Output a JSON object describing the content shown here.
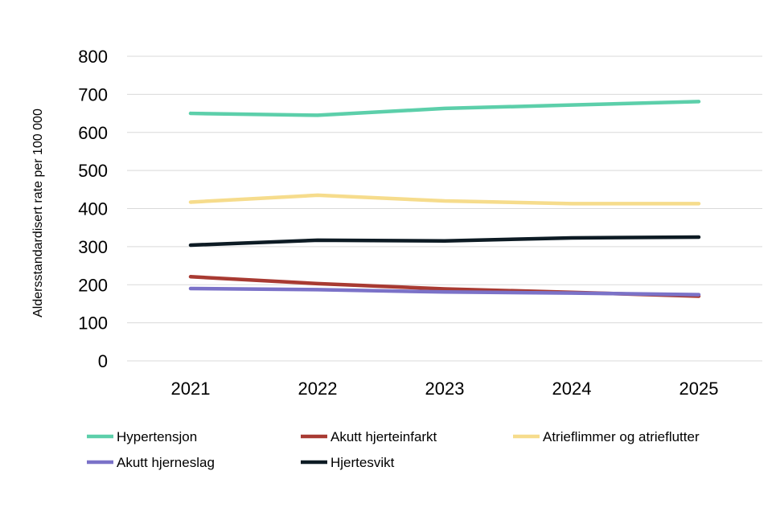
{
  "chart_data": {
    "type": "line",
    "title": "",
    "xlabel": "",
    "ylabel": "Aldersstandardisert rate per 100 000",
    "x": [
      "2021",
      "2022",
      "2023",
      "2024",
      "2025"
    ],
    "ylim": [
      0,
      800
    ],
    "yticks": [
      0,
      100,
      200,
      300,
      400,
      500,
      600,
      700,
      800
    ],
    "grid": true,
    "legend_position": "bottom",
    "series": [
      {
        "name": "Hypertensjon",
        "color": "#5ccfaa",
        "values": [
          650,
          645,
          663,
          672,
          681
        ]
      },
      {
        "name": "Akutt hjerteinfarkt",
        "color": "#a83a32",
        "values": [
          221,
          203,
          189,
          180,
          170
        ]
      },
      {
        "name": "Atrieflimmer og atrieflutter",
        "color": "#f6dc8c",
        "values": [
          417,
          435,
          420,
          413,
          413
        ]
      },
      {
        "name": "Akutt hjerneslag",
        "color": "#7b72c8",
        "values": [
          190,
          187,
          181,
          178,
          174
        ]
      },
      {
        "name": "Hjertesvikt",
        "color": "#0d1b24",
        "values": [
          304,
          317,
          315,
          323,
          325
        ]
      }
    ]
  }
}
